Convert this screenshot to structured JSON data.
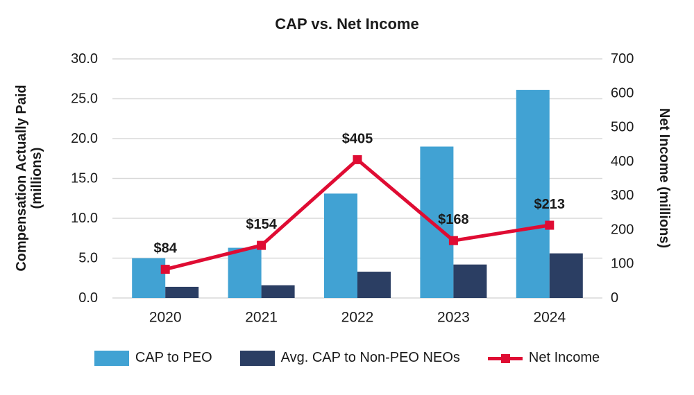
{
  "title": "CAP vs. Net Income",
  "legend": [
    {
      "label": "CAP to PEO",
      "swatch": "bar",
      "color": "#41a2d3"
    },
    {
      "label": "Avg. CAP to Non-PEO NEOs",
      "swatch": "bar",
      "color": "#2b3e63"
    },
    {
      "label": "Net Income",
      "swatch": "line",
      "color": "#df0c33"
    }
  ],
  "chart_data": {
    "type": "bar+line combo, dual y-axis",
    "categories": [
      "2020",
      "2021",
      "2022",
      "2023",
      "2024"
    ],
    "series": [
      {
        "name": "CAP to PEO",
        "type": "bar",
        "axis": "left",
        "color": "#41a2d3",
        "values": [
          5.0,
          6.3,
          13.1,
          19.0,
          26.1
        ]
      },
      {
        "name": "Avg. CAP to Non-PEO NEOs",
        "type": "bar",
        "axis": "left",
        "color": "#2b3e63",
        "values": [
          1.4,
          1.6,
          3.3,
          4.2,
          5.6
        ]
      },
      {
        "name": "Net Income",
        "type": "line",
        "axis": "right",
        "color": "#df0c33",
        "values": [
          84,
          154,
          405,
          168,
          213
        ],
        "point_labels": [
          "$84",
          "$154",
          "$405",
          "$168",
          "$213"
        ]
      }
    ],
    "title": "CAP vs. Net Income",
    "left_axis": {
      "title_line1": "Compensation Actually Paid",
      "title_line2": "(millions)",
      "min": 0,
      "max": 30,
      "step": 5,
      "tick_labels": [
        "0.0",
        "5.0",
        "10.0",
        "15.0",
        "20.0",
        "25.0",
        "30.0"
      ]
    },
    "right_axis": {
      "title": "Net Income (millions)",
      "min": 0,
      "max": 700,
      "step": 100,
      "tick_labels": [
        "0",
        "100",
        "200",
        "300",
        "400",
        "500",
        "600",
        "700"
      ]
    },
    "grid": true,
    "legend_position": "bottom"
  },
  "colors": {
    "background": "#ffffff",
    "gridline": "#d9d9d9",
    "text": "#1a1a1a",
    "bar_light_blue": "#41a2d3",
    "bar_navy": "#2b3e63",
    "line_red": "#df0c33"
  }
}
